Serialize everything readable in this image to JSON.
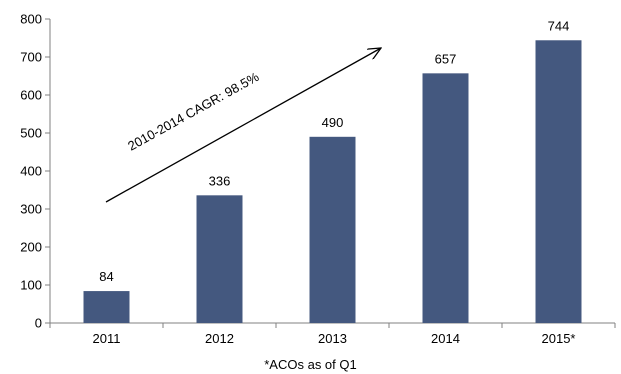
{
  "chart_data": {
    "type": "bar",
    "categories": [
      "2011",
      "2012",
      "2013",
      "2014",
      "2015*"
    ],
    "values": [
      84,
      336,
      490,
      657,
      744
    ],
    "data_labels": [
      "84",
      "336",
      "490",
      "657",
      "744"
    ],
    "y_ticks": [
      "0",
      "100",
      "200",
      "300",
      "400",
      "500",
      "600",
      "700",
      "800"
    ],
    "ylim": [
      0,
      800
    ],
    "grid": false,
    "bar_color": "#44587f",
    "annotation": "2010-2014 CAGR: 98.5%"
  },
  "footnote": "*ACOs as of Q1"
}
